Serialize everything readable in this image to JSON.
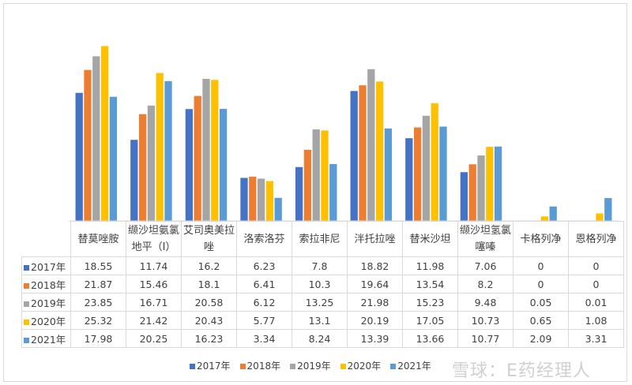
{
  "chart_data": {
    "type": "bar",
    "categories": [
      "替莫唑胺",
      "缬沙坦氨氯地平（I）",
      "艾司奥美拉唑",
      "洛索洛芬",
      "索拉非尼",
      "泮托拉唑",
      "替米沙坦",
      "缬沙坦氢氯噻嗪",
      "卡格列净",
      "恩格列净"
    ],
    "category_lines": [
      [
        "替莫唑胺"
      ],
      [
        "缬沙坦氨氯",
        "地平（I）"
      ],
      [
        "艾司奥美拉",
        "唑"
      ],
      [
        "洛索洛芬"
      ],
      [
        "索拉非尼"
      ],
      [
        "泮托拉唑"
      ],
      [
        "替米沙坦"
      ],
      [
        "缬沙坦氢氯",
        "噻嗪"
      ],
      [
        "卡格列净"
      ],
      [
        "恩格列净"
      ]
    ],
    "series": [
      {
        "name": "2017年",
        "color": "#4472c4",
        "values": [
          18.55,
          11.74,
          16.2,
          6.23,
          7.8,
          18.82,
          11.98,
          7.06,
          0,
          0
        ],
        "labels": [
          "18.55",
          "11.74",
          "16.2",
          "6.23",
          "7.8",
          "18.82",
          "11.98",
          "7.06",
          "0",
          "0"
        ]
      },
      {
        "name": "2018年",
        "color": "#ed7d31",
        "values": [
          21.87,
          15.46,
          18.1,
          6.41,
          10.3,
          19.64,
          13.54,
          8.2,
          0,
          0
        ],
        "labels": [
          "21.87",
          "15.46",
          "18.1",
          "6.41",
          "10.3",
          "19.64",
          "13.54",
          "8.2",
          "0",
          "0"
        ]
      },
      {
        "name": "2019年",
        "color": "#a5a5a5",
        "values": [
          23.85,
          16.71,
          20.58,
          6.12,
          13.25,
          21.98,
          15.23,
          9.48,
          0.05,
          0.01
        ],
        "labels": [
          "23.85",
          "16.71",
          "20.58",
          "6.12",
          "13.25",
          "21.98",
          "15.23",
          "9.48",
          "0.05",
          "0.01"
        ]
      },
      {
        "name": "2020年",
        "color": "#ffc000",
        "values": [
          25.32,
          21.42,
          20.43,
          5.77,
          13.1,
          20.19,
          17.05,
          10.73,
          0.65,
          1.08
        ],
        "labels": [
          "25.32",
          "21.42",
          "20.43",
          "5.77",
          "13.1",
          "20.19",
          "17.05",
          "10.73",
          "0.65",
          "1.08"
        ]
      },
      {
        "name": "2021年",
        "color": "#5b9bd5",
        "values": [
          17.98,
          20.25,
          16.23,
          3.34,
          8.24,
          13.39,
          13.66,
          10.77,
          2.09,
          3.31
        ],
        "labels": [
          "17.98",
          "20.25",
          "16.23",
          "3.34",
          "8.24",
          "13.39",
          "13.66",
          "10.77",
          "2.09",
          "3.31"
        ]
      }
    ],
    "ylim": [
      0,
      28
    ],
    "grid": false,
    "legend": "bottom",
    "title": "",
    "xlabel": "",
    "ylabel": ""
  },
  "watermark": "雪球：E药经理人"
}
